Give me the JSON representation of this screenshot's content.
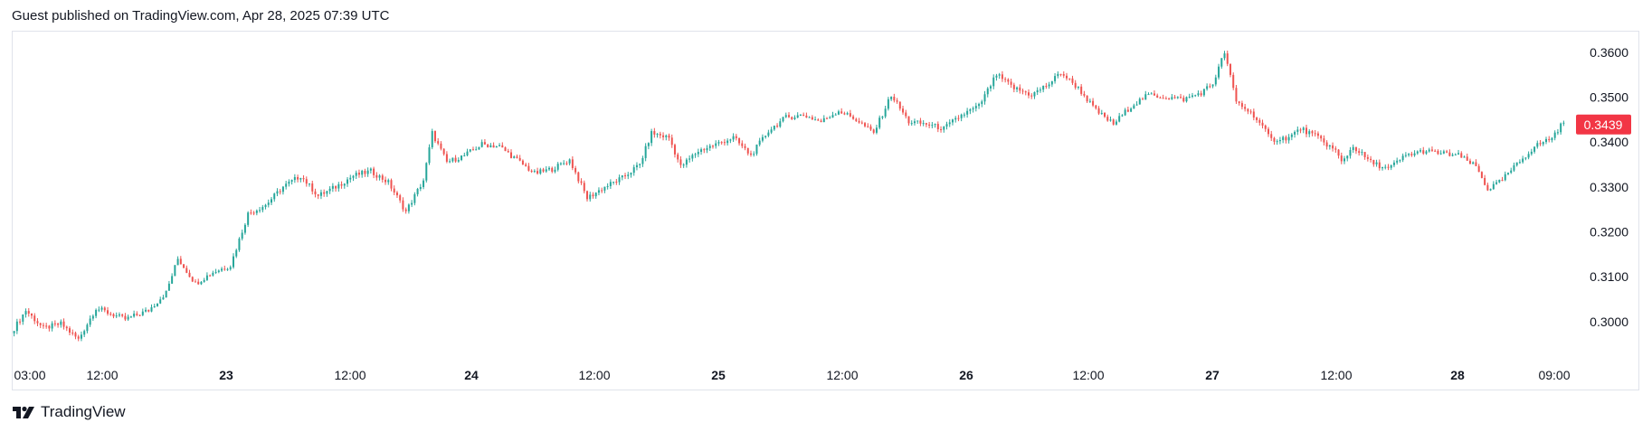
{
  "header": {
    "published_text": "Guest published on TradingView.com, Apr 28, 2025 07:39 UTC"
  },
  "footer": {
    "brand": "TradingView"
  },
  "colors": {
    "up": "#26a69a",
    "down": "#ef5350",
    "last_price_bg": "#f23645",
    "axis_text": "#131722",
    "border": "#e0e3eb"
  },
  "chart_data": {
    "type": "candlestick",
    "symbol": "",
    "interval": "15m",
    "last_price": "0.3439",
    "y_ticks": [
      "0.3600",
      "0.3500",
      "0.3400",
      "0.3300",
      "0.3200",
      "0.3100",
      "0.3000"
    ],
    "y_tick_values": [
      0.36,
      0.35,
      0.34,
      0.33,
      0.32,
      0.31,
      0.3
    ],
    "ylim": [
      0.2915,
      0.3648
    ],
    "x_ticks": [
      {
        "label": "03:00",
        "bold": false
      },
      {
        "label": "12:00",
        "bold": false
      },
      {
        "label": "23",
        "bold": true
      },
      {
        "label": "12:00",
        "bold": false
      },
      {
        "label": "24",
        "bold": true
      },
      {
        "label": "12:00",
        "bold": false
      },
      {
        "label": "25",
        "bold": true
      },
      {
        "label": "12:00",
        "bold": false
      },
      {
        "label": "26",
        "bold": true
      },
      {
        "label": "12:00",
        "bold": false
      },
      {
        "label": "27",
        "bold": true
      },
      {
        "label": "12:00",
        "bold": false
      },
      {
        "label": "28",
        "bold": true
      },
      {
        "label": "09:00",
        "bold": false
      }
    ],
    "price_path": [
      [
        0,
        0.2985
      ],
      [
        4,
        0.3025
      ],
      [
        10,
        0.2985
      ],
      [
        16,
        0.2995
      ],
      [
        22,
        0.296
      ],
      [
        28,
        0.303
      ],
      [
        38,
        0.3005
      ],
      [
        46,
        0.3025
      ],
      [
        52,
        0.3065
      ],
      [
        56,
        0.314
      ],
      [
        62,
        0.3085
      ],
      [
        68,
        0.311
      ],
      [
        74,
        0.3125
      ],
      [
        80,
        0.324
      ],
      [
        86,
        0.326
      ],
      [
        92,
        0.33
      ],
      [
        98,
        0.3325
      ],
      [
        104,
        0.328
      ],
      [
        110,
        0.33
      ],
      [
        116,
        0.3325
      ],
      [
        122,
        0.3335
      ],
      [
        128,
        0.331
      ],
      [
        134,
        0.3245
      ],
      [
        140,
        0.3315
      ],
      [
        143,
        0.342
      ],
      [
        148,
        0.3355
      ],
      [
        154,
        0.337
      ],
      [
        160,
        0.3395
      ],
      [
        166,
        0.339
      ],
      [
        172,
        0.336
      ],
      [
        178,
        0.333
      ],
      [
        184,
        0.334
      ],
      [
        190,
        0.336
      ],
      [
        196,
        0.3275
      ],
      [
        202,
        0.33
      ],
      [
        208,
        0.332
      ],
      [
        214,
        0.335
      ],
      [
        218,
        0.342
      ],
      [
        224,
        0.341
      ],
      [
        228,
        0.3345
      ],
      [
        234,
        0.338
      ],
      [
        240,
        0.3395
      ],
      [
        246,
        0.341
      ],
      [
        252,
        0.337
      ],
      [
        258,
        0.3425
      ],
      [
        264,
        0.3455
      ],
      [
        270,
        0.346
      ],
      [
        276,
        0.3445
      ],
      [
        282,
        0.347
      ],
      [
        288,
        0.345
      ],
      [
        294,
        0.342
      ],
      [
        300,
        0.3505
      ],
      [
        306,
        0.3445
      ],
      [
        312,
        0.344
      ],
      [
        318,
        0.343
      ],
      [
        324,
        0.346
      ],
      [
        330,
        0.348
      ],
      [
        336,
        0.355
      ],
      [
        342,
        0.352
      ],
      [
        348,
        0.3505
      ],
      [
        354,
        0.353
      ],
      [
        358,
        0.3555
      ],
      [
        364,
        0.352
      ],
      [
        370,
        0.347
      ],
      [
        376,
        0.344
      ],
      [
        382,
        0.348
      ],
      [
        388,
        0.3505
      ],
      [
        394,
        0.35
      ],
      [
        400,
        0.3495
      ],
      [
        406,
        0.351
      ],
      [
        410,
        0.353
      ],
      [
        414,
        0.36
      ],
      [
        418,
        0.349
      ],
      [
        424,
        0.346
      ],
      [
        430,
        0.3405
      ],
      [
        436,
        0.341
      ],
      [
        440,
        0.343
      ],
      [
        446,
        0.341
      ],
      [
        452,
        0.338
      ],
      [
        454,
        0.3355
      ],
      [
        458,
        0.339
      ],
      [
        464,
        0.3355
      ],
      [
        470,
        0.334
      ],
      [
        476,
        0.337
      ],
      [
        482,
        0.338
      ],
      [
        488,
        0.3375
      ],
      [
        494,
        0.337
      ],
      [
        500,
        0.3345
      ],
      [
        504,
        0.3295
      ],
      [
        508,
        0.331
      ],
      [
        514,
        0.335
      ],
      [
        520,
        0.339
      ],
      [
        526,
        0.341
      ],
      [
        530,
        0.3445
      ]
    ]
  }
}
